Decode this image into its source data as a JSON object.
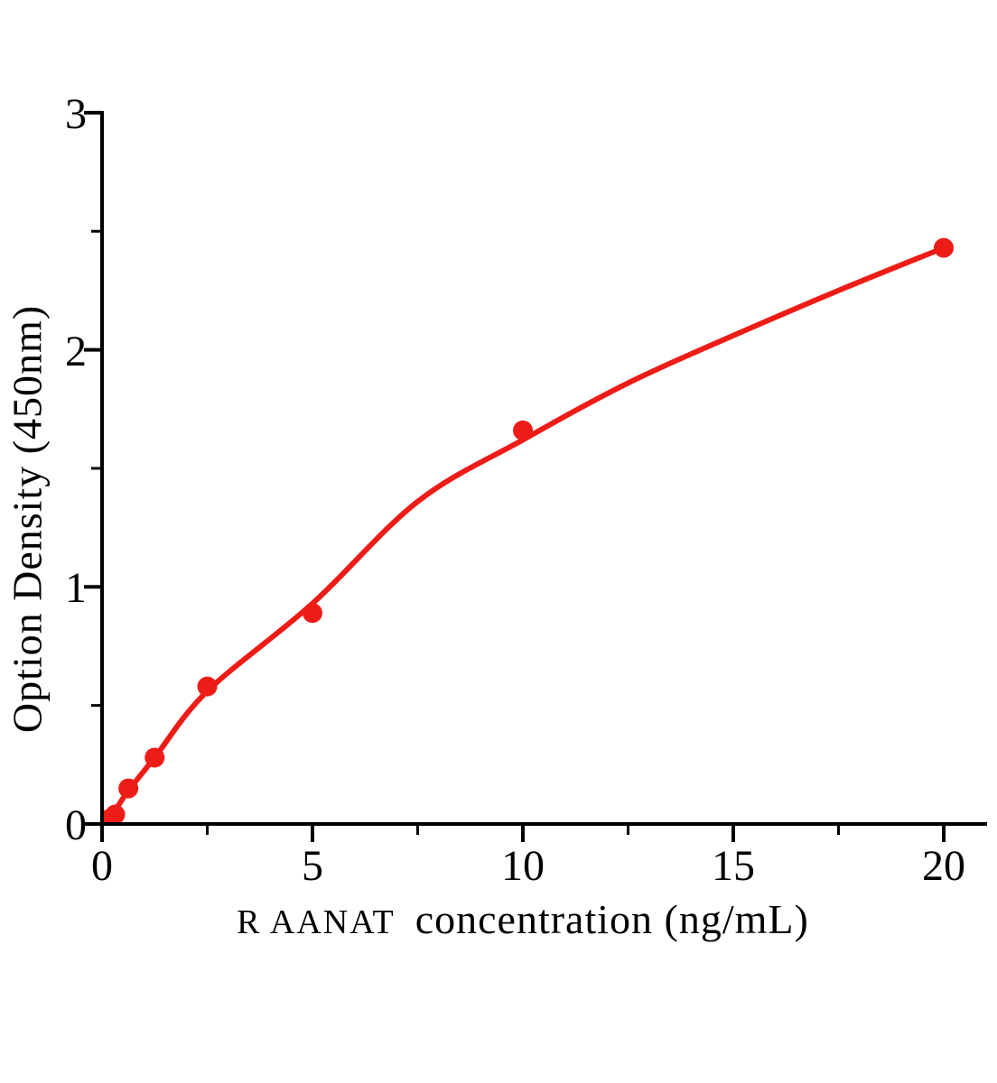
{
  "figure": {
    "background": "#ffffff",
    "axis_color": "#000000",
    "accent_red": "#ee1c17"
  },
  "chart_data": {
    "type": "scatter",
    "title": "",
    "xlabel_prefix": "R AANAT",
    "xlabel_main": "concentration (ng/mL)",
    "ylabel": "Option Density (450nm)",
    "xlim": [
      0,
      21
    ],
    "ylim": [
      0,
      3
    ],
    "x_ticks": [
      0,
      5,
      10,
      15,
      20
    ],
    "x_minor_ticks": [
      2.5,
      7.5,
      12.5,
      17.5
    ],
    "y_ticks": [
      0,
      1,
      2,
      3
    ],
    "y_minor_ticks": [
      0.5,
      1.5,
      2.5
    ],
    "grid": false,
    "legend": "none",
    "marker_color": "#ee1c17",
    "line_color": "#ee1c17",
    "points": [
      {
        "x": 0.156,
        "y": 0.02
      },
      {
        "x": 0.312,
        "y": 0.04
      },
      {
        "x": 0.625,
        "y": 0.15
      },
      {
        "x": 1.25,
        "y": 0.28
      },
      {
        "x": 2.5,
        "y": 0.58
      },
      {
        "x": 5,
        "y": 0.89
      },
      {
        "x": 10,
        "y": 1.66
      },
      {
        "x": 20,
        "y": 2.43
      }
    ],
    "fit_curve": [
      {
        "x": 0,
        "y": 0.0
      },
      {
        "x": 0.312,
        "y": 0.06
      },
      {
        "x": 0.625,
        "y": 0.14
      },
      {
        "x": 1.25,
        "y": 0.28
      },
      {
        "x": 2.5,
        "y": 0.56
      },
      {
        "x": 5,
        "y": 0.93
      },
      {
        "x": 7.5,
        "y": 1.36
      },
      {
        "x": 10,
        "y": 1.62
      },
      {
        "x": 12.5,
        "y": 1.86
      },
      {
        "x": 15,
        "y": 2.06
      },
      {
        "x": 17.5,
        "y": 2.25
      },
      {
        "x": 20,
        "y": 2.43
      }
    ]
  }
}
